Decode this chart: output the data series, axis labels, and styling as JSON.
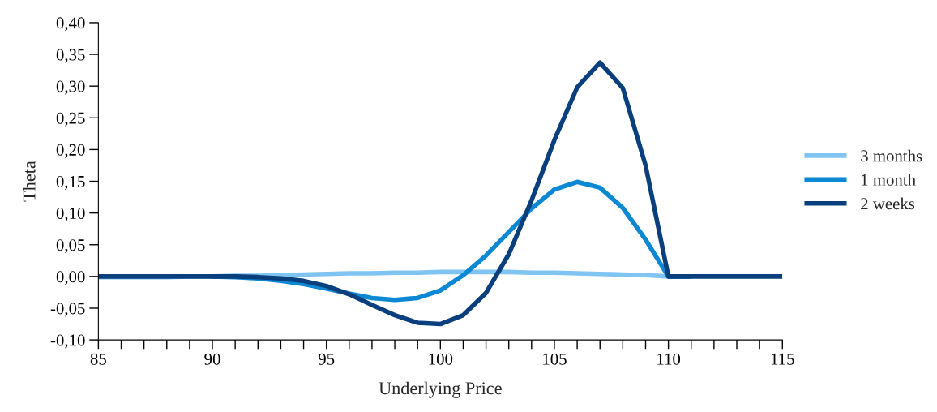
{
  "chart_data": {
    "type": "line",
    "xlabel": "Underlying Price",
    "ylabel": "Theta",
    "x": [
      85,
      86,
      87,
      88,
      89,
      90,
      91,
      92,
      93,
      94,
      95,
      96,
      97,
      98,
      99,
      100,
      101,
      102,
      103,
      104,
      105,
      106,
      107,
      108,
      109,
      110,
      111,
      112,
      113,
      114,
      115
    ],
    "series": [
      {
        "name": "3 months",
        "color": "#80c4f2",
        "values": [
          -0.001,
          -0.001,
          -0.001,
          -0.001,
          0,
          0,
          0.001,
          0.001,
          0.002,
          0.003,
          0.004,
          0.005,
          0.005,
          0.006,
          0.006,
          0.007,
          0.007,
          0.007,
          0.007,
          0.006,
          0.006,
          0.005,
          0.004,
          0.003,
          0.002,
          0,
          0,
          null,
          null,
          null,
          null
        ]
      },
      {
        "name": "1 month",
        "color": "#0a88d4",
        "values": [
          null,
          null,
          null,
          null,
          null,
          0,
          -0.001,
          -0.003,
          -0.007,
          -0.012,
          -0.019,
          -0.027,
          -0.034,
          -0.037,
          -0.034,
          -0.022,
          0.002,
          0.033,
          0.07,
          0.107,
          0.137,
          0.149,
          0.14,
          0.108,
          0.058,
          0,
          0,
          null,
          null,
          null,
          null
        ]
      },
      {
        "name": "2 weeks",
        "color": "#0a3f7d",
        "values": [
          0,
          0,
          0,
          0,
          0,
          0,
          0,
          -0.001,
          -0.003,
          -0.007,
          -0.015,
          -0.028,
          -0.045,
          -0.061,
          -0.073,
          -0.075,
          -0.061,
          -0.026,
          0.035,
          0.12,
          0.215,
          0.298,
          0.337,
          0.297,
          0.175,
          0,
          0,
          0,
          0,
          0,
          0
        ]
      }
    ],
    "xlim": [
      85,
      115
    ],
    "xticks": [
      85,
      {
        "value": 86,
        "label": null
      },
      {
        "value": 87,
        "label": null
      },
      {
        "value": 88,
        "label": null
      },
      {
        "value": 89,
        "label": null
      },
      90,
      {
        "value": 91,
        "label": null
      },
      {
        "value": 92,
        "label": null
      },
      {
        "value": 93,
        "label": null
      },
      {
        "value": 94,
        "label": null
      },
      95,
      {
        "value": 96,
        "label": null
      },
      {
        "value": 97,
        "label": null
      },
      {
        "value": 98,
        "label": null
      },
      {
        "value": 99,
        "label": null
      },
      100,
      {
        "value": 101,
        "label": null
      },
      {
        "value": 102,
        "label": null
      },
      {
        "value": 103,
        "label": null
      },
      {
        "value": 104,
        "label": null
      },
      105,
      {
        "value": 106,
        "label": null
      },
      {
        "value": 107,
        "label": null
      },
      {
        "value": 108,
        "label": null
      },
      {
        "value": 109,
        "label": null
      },
      110,
      {
        "value": 111,
        "label": null
      },
      {
        "value": 112,
        "label": null
      },
      {
        "value": 113,
        "label": null
      },
      {
        "value": 114,
        "label": null
      },
      115
    ],
    "ylim": [
      -0.1,
      0.4
    ],
    "yticks": [
      {
        "value": -0.1,
        "label": "-0,10"
      },
      {
        "value": -0.05,
        "label": "-0,05"
      },
      {
        "value": 0,
        "label": "0,00"
      },
      {
        "value": 0.05,
        "label": "0,05"
      },
      {
        "value": 0.1,
        "label": "0,10"
      },
      {
        "value": 0.15,
        "label": "0,15"
      },
      {
        "value": 0.2,
        "label": "0,20"
      },
      {
        "value": 0.25,
        "label": "0,25"
      },
      {
        "value": 0.3,
        "label": "0,30"
      },
      {
        "value": 0.35,
        "label": "0,35"
      },
      {
        "value": 0.4,
        "label": "0,40"
      }
    ],
    "grid": false,
    "legend": "right",
    "line_style": "solid",
    "marker": "none"
  }
}
